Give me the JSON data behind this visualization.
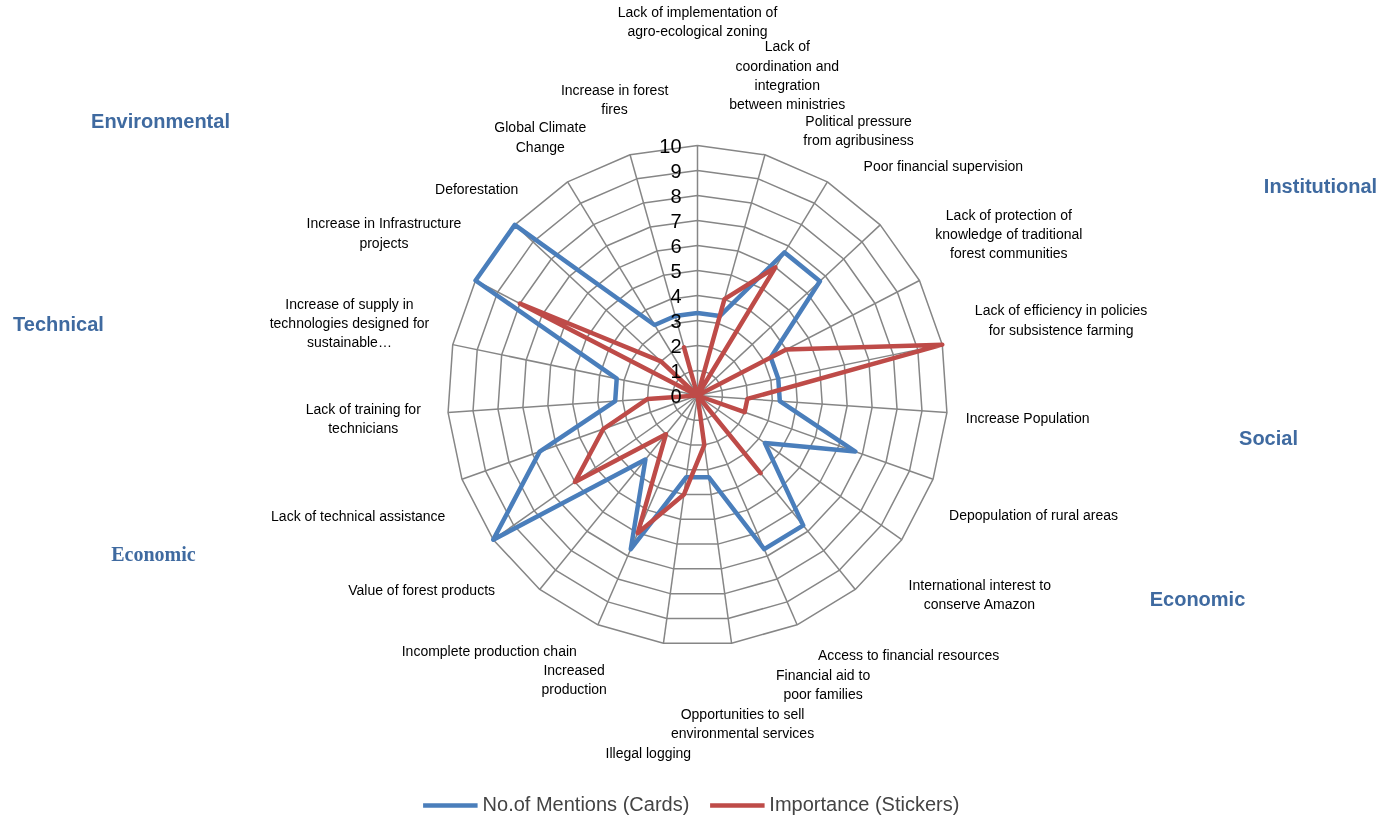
{
  "chart_data": {
    "type": "radar",
    "categories": [
      "Lack of implementation of agro-ecological zoning",
      "Lack of coordination and integration between ministries",
      "Political pressure from agribusiness",
      "Poor financial supervision",
      "Lack of protection of knowledge of traditional forest communities",
      "Lack of efficiency in policies for subsistence farming",
      "Increase Population",
      "Depopulation of rural areas",
      "International interest to conserve Amazon",
      "Access to financial resources",
      "Financial aid to poor families",
      "Opportunities to sell environmental services",
      "Illegal logging",
      "Increased production",
      "Incomplete production chain",
      "Value of forest products",
      "Lack of technical assistance",
      "Lack of training for technicians",
      "Increase of supply in technologies designed for sustainable…",
      "Increase in Infrastructure projects",
      "Deforestation",
      "Global Climate Change",
      "Increase in forest fires"
    ],
    "series": [
      {
        "name": "No.of Mentions (Cards)",
        "color": "#4a7ebb",
        "values": [
          3.3,
          3.3,
          6.7,
          6.7,
          3.3,
          3.3,
          3.3,
          6.7,
          3.3,
          6.7,
          6.7,
          3.3,
          3.3,
          6.7,
          3.3,
          10,
          6.7,
          3.3,
          3.3,
          10,
          10,
          3.3,
          3.3
        ]
      },
      {
        "name": "Importance (Stickers)",
        "color": "#be4b48",
        "values": [
          0,
          4,
          6,
          0,
          4,
          10,
          2,
          2,
          0,
          4,
          0,
          2,
          4,
          6,
          2,
          6,
          4,
          2,
          0,
          8,
          2,
          0,
          2
        ]
      }
    ],
    "ylim": [
      0,
      10
    ],
    "yticks": [
      0,
      1,
      2,
      3,
      4,
      5,
      6,
      7,
      8,
      9,
      10
    ],
    "grid": true,
    "legend": "bottom",
    "annotations": [
      "Environmental",
      "Institutional",
      "Technical",
      "Social",
      "Economic",
      "Economic"
    ]
  }
}
